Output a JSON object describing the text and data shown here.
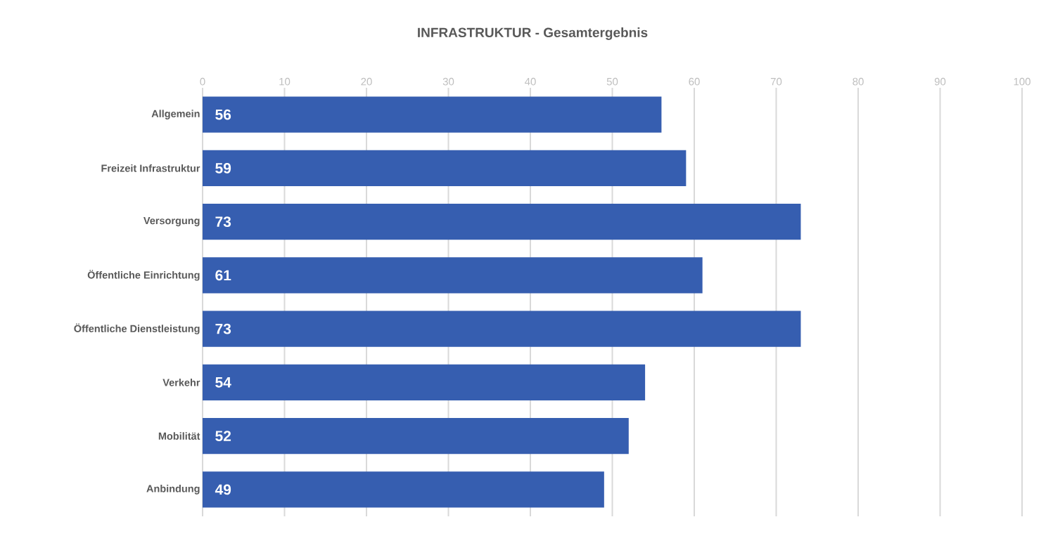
{
  "chart_data": {
    "type": "bar",
    "orientation": "horizontal",
    "title": "INFRASTRUKTUR - Gesamtergebnis",
    "categories": [
      "Allgemein",
      "Freizeit Infrastruktur",
      "Versorgung",
      "Öffentliche Einrichtung",
      "Öffentliche Dienstleistung",
      "Verkehr",
      "Mobilität",
      "Anbindung"
    ],
    "values": [
      56,
      59,
      73,
      61,
      73,
      54,
      52,
      49
    ],
    "color": "#365eb0",
    "xlim": [
      0,
      100
    ],
    "xticks": [
      0,
      10,
      20,
      30,
      40,
      50,
      60,
      70,
      80,
      90,
      100
    ],
    "grid": "x",
    "data_labels": true
  }
}
